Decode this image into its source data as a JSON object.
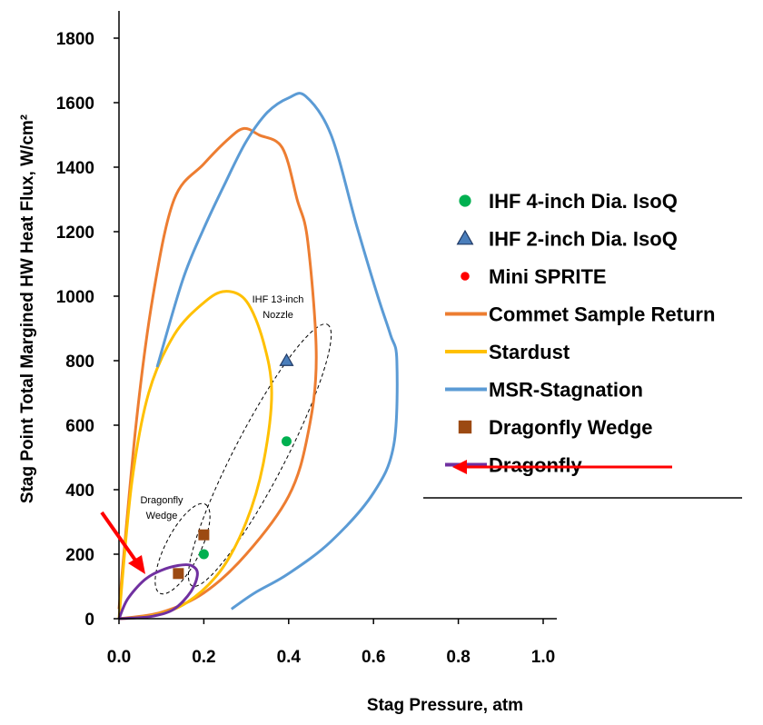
{
  "chart_data": {
    "type": "scatter",
    "xlabel": "Stag Pressure, atm",
    "ylabel": "Stag Point Total Margined HW Heat Flux, W/cm²",
    "xlim": [
      0,
      1.0
    ],
    "ylim": [
      0,
      1800
    ],
    "xticks": [
      "0.0",
      "0.2",
      "0.4",
      "0.6",
      "0.8",
      "1.0"
    ],
    "yticks": [
      "0",
      "200",
      "400",
      "600",
      "800",
      "1000",
      "1200",
      "1400",
      "1600",
      "1800"
    ],
    "grid": false,
    "legend_position": "right",
    "series": [
      {
        "name": "IHF 4-inch Dia. IsoQ",
        "kind": "marker",
        "marker": "circle",
        "color": "#00b050",
        "points": [
          [
            0.2,
            200
          ],
          [
            0.395,
            550
          ]
        ]
      },
      {
        "name": "IHF 2-inch Dia. IsoQ",
        "kind": "marker",
        "marker": "triangle",
        "color": "#4a7ebb",
        "points": [
          [
            0.395,
            800
          ]
        ]
      },
      {
        "name": "Mini SPRITE",
        "kind": "marker",
        "marker": "dot",
        "color": "#ff0000",
        "points": []
      },
      {
        "name": "Commet Sample Return",
        "kind": "line",
        "color": "#ed7d31",
        "points": [
          [
            0.0,
            30
          ],
          [
            0.04,
            600
          ],
          [
            0.08,
            1000
          ],
          [
            0.13,
            1300
          ],
          [
            0.2,
            1410
          ],
          [
            0.26,
            1490
          ],
          [
            0.295,
            1520
          ],
          [
            0.33,
            1500
          ],
          [
            0.385,
            1460
          ],
          [
            0.42,
            1300
          ],
          [
            0.445,
            1170
          ],
          [
            0.465,
            810
          ],
          [
            0.445,
            570
          ],
          [
            0.4,
            380
          ],
          [
            0.3,
            200
          ],
          [
            0.2,
            80
          ],
          [
            0.1,
            20
          ],
          [
            0.0,
            0
          ]
        ]
      },
      {
        "name": "Stardust",
        "kind": "line",
        "color": "#ffc000",
        "points": [
          [
            0.0,
            0
          ],
          [
            0.03,
            420
          ],
          [
            0.07,
            700
          ],
          [
            0.13,
            880
          ],
          [
            0.2,
            980
          ],
          [
            0.25,
            1015
          ],
          [
            0.3,
            985
          ],
          [
            0.34,
            860
          ],
          [
            0.36,
            700
          ],
          [
            0.34,
            480
          ],
          [
            0.3,
            300
          ],
          [
            0.24,
            150
          ],
          [
            0.16,
            50
          ],
          [
            0.08,
            10
          ],
          [
            0.0,
            0
          ]
        ]
      },
      {
        "name": "MSR-Stagnation",
        "kind": "line",
        "color": "#5b9bd5",
        "points": [
          [
            0.09,
            780
          ],
          [
            0.15,
            1050
          ],
          [
            0.2,
            1210
          ],
          [
            0.25,
            1350
          ],
          [
            0.3,
            1480
          ],
          [
            0.35,
            1570
          ],
          [
            0.4,
            1615
          ],
          [
            0.44,
            1620
          ],
          [
            0.5,
            1500
          ],
          [
            0.56,
            1220
          ],
          [
            0.61,
            1000
          ],
          [
            0.64,
            880
          ],
          [
            0.655,
            800
          ],
          [
            0.648,
            540
          ],
          [
            0.6,
            390
          ],
          [
            0.5,
            240
          ],
          [
            0.4,
            140
          ],
          [
            0.32,
            80
          ],
          [
            0.265,
            30
          ]
        ]
      },
      {
        "name": "Dragonfly Wedge",
        "kind": "marker",
        "marker": "square",
        "color": "#9c4a12",
        "points": [
          [
            0.14,
            140
          ],
          [
            0.2,
            260
          ]
        ]
      },
      {
        "name": "Dragonfly",
        "kind": "line",
        "color": "#7030a0",
        "points": [
          [
            0.0,
            0
          ],
          [
            0.02,
            60
          ],
          [
            0.06,
            120
          ],
          [
            0.1,
            150
          ],
          [
            0.14,
            165
          ],
          [
            0.17,
            165
          ],
          [
            0.185,
            140
          ],
          [
            0.17,
            85
          ],
          [
            0.13,
            30
          ],
          [
            0.08,
            8
          ],
          [
            0.03,
            2
          ],
          [
            0.0,
            0
          ]
        ]
      }
    ],
    "annotations": [
      {
        "text_lines": [
          "IHF 13-inch",
          "Nozzle"
        ]
      },
      {
        "text_lines": [
          "Dragonfly",
          "Wedge"
        ]
      }
    ]
  }
}
